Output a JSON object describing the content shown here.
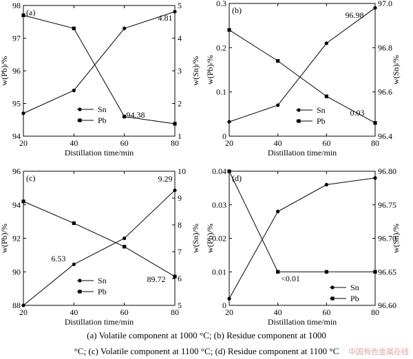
{
  "figure": {
    "caption_line1": "(a) Volatile component at 1000 °C; (b) Residue component at 1000",
    "caption_line2": "°C; (c) Volatile component at 1100 °C; (d) Residue component at 1100 °C",
    "watermark": "中国有色金属在线"
  },
  "chart_data": [
    {
      "id": "a",
      "type": "line",
      "panel_label": "(a)",
      "xlabel": "Distillation time/min",
      "ylabel_left": "w(Pb)/%",
      "ylabel_right": "w(Sn)/%",
      "x": [
        20,
        40,
        60,
        80
      ],
      "xlim": [
        20,
        80
      ],
      "xticks": [
        "20",
        "40",
        "60",
        "80"
      ],
      "ylim_left": [
        94,
        98
      ],
      "yticks_left": [
        "94",
        "95",
        "96",
        "97",
        "98"
      ],
      "ylim_right": [
        1,
        5
      ],
      "yticks_right": [
        "1",
        "2",
        "3",
        "4",
        "5"
      ],
      "series": [
        {
          "name": "Sn",
          "axis": "right",
          "marker": "circle",
          "values": [
            1.7,
            2.4,
            4.3,
            4.81
          ]
        },
        {
          "name": "Pb",
          "axis": "left",
          "marker": "square",
          "values": [
            97.7,
            97.3,
            94.6,
            94.38
          ]
        }
      ],
      "annotations": [
        "4.81",
        "94.38"
      ],
      "legend": "lower-right"
    },
    {
      "id": "b",
      "type": "line",
      "panel_label": "(b)",
      "xlabel": "Distillation time/min",
      "ylabel_left": "w(Pb)/%",
      "ylabel_right": "w(Sn)/%",
      "x": [
        20,
        40,
        60,
        80
      ],
      "xlim": [
        20,
        80
      ],
      "xticks": [
        "20",
        "40",
        "60",
        "80"
      ],
      "ylim_left": [
        0,
        0.3
      ],
      "yticks_left": [
        "0",
        "0.1",
        "0.2",
        "0.3"
      ],
      "ylim_right": [
        96.4,
        97.0
      ],
      "yticks_right": [
        "96.4",
        "96.6",
        "96.8",
        "97.0"
      ],
      "series": [
        {
          "name": "Sn",
          "axis": "right",
          "marker": "circle",
          "values": [
            96.465,
            96.54,
            96.82,
            96.98
          ]
        },
        {
          "name": "Pb",
          "axis": "left",
          "marker": "square",
          "values": [
            0.24,
            0.17,
            0.09,
            0.03
          ]
        }
      ],
      "annotations": [
        "96.98",
        "0.03"
      ],
      "legend": "lower-right"
    },
    {
      "id": "c",
      "type": "line",
      "panel_label": "(c)",
      "xlabel": "Distillation time/min",
      "ylabel_left": "w(Pb)/%",
      "ylabel_right": "w(Sn)/%",
      "x": [
        20,
        40,
        60,
        80
      ],
      "xlim": [
        20,
        80
      ],
      "xticks": [
        "20",
        "40",
        "60",
        "80"
      ],
      "ylim_left": [
        88,
        96
      ],
      "yticks_left": [
        "88",
        "90",
        "92",
        "94",
        "96"
      ],
      "ylim_right": [
        5,
        10
      ],
      "yticks_right": [
        "5",
        "6",
        "7",
        "8",
        "9",
        "10"
      ],
      "series": [
        {
          "name": "Sn",
          "axis": "right",
          "marker": "circle",
          "values": [
            5.0,
            6.53,
            7.5,
            9.29
          ]
        },
        {
          "name": "Pb",
          "axis": "left",
          "marker": "square",
          "values": [
            94.2,
            92.9,
            91.5,
            89.72
          ]
        }
      ],
      "annotations": [
        "6.53",
        "9.29",
        "89.72"
      ],
      "legend": "lower-right"
    },
    {
      "id": "d",
      "type": "line",
      "panel_label": "(d)",
      "xlabel": "Distillation time/min",
      "ylabel_left": "w(Pb)/%",
      "ylabel_right": "w(Sn)/%",
      "x": [
        20,
        40,
        60,
        80
      ],
      "xlim": [
        20,
        80
      ],
      "xticks": [
        "20",
        "40",
        "60",
        "80"
      ],
      "ylim_left": [
        0,
        0.04
      ],
      "yticks_left": [
        "0",
        "0.01",
        "0.02",
        "0.03",
        "0.04"
      ],
      "ylim_right": [
        96.6,
        96.8
      ],
      "yticks_right": [
        "96.60",
        "96.65",
        "96.70",
        "96.75",
        "96.80"
      ],
      "series": [
        {
          "name": "Sn",
          "axis": "right",
          "marker": "circle",
          "values": [
            96.61,
            96.74,
            96.78,
            96.79
          ]
        },
        {
          "name": "Pb",
          "axis": "left",
          "marker": "square",
          "values": [
            0.04,
            0.01,
            0.01,
            0.01
          ]
        }
      ],
      "annotations": [
        "<0.01"
      ],
      "legend": "lower-right"
    }
  ]
}
